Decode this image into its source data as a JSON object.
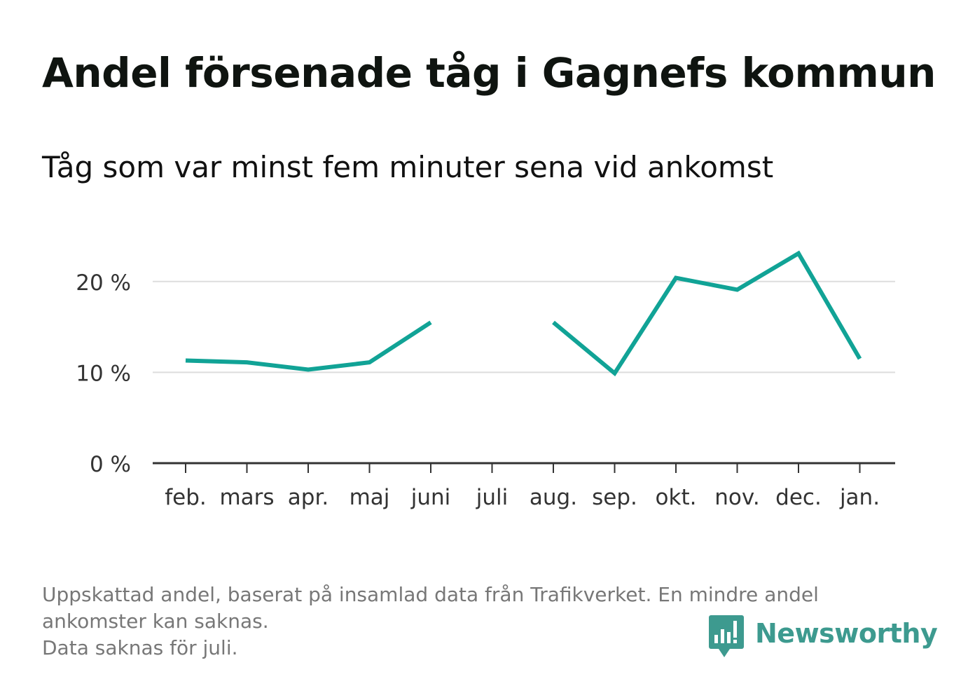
{
  "title": "Andel försenade tåg i Gagnefs kommun",
  "subtitle": "Tåg som var minst fem minuter sena vid ankomst",
  "footnote": {
    "line1": "Uppskattad andel, baserat på insamlad data från Trafikverket. En mindre andel",
    "line2": "ankomster kan saknas.",
    "line3": "Data saknas för juli."
  },
  "brand": {
    "name": "Newsworthy",
    "icon": "newsworthy-logo-icon"
  },
  "colors": {
    "line": "#11a396",
    "grid": "#dddddd",
    "axis": "#333333",
    "tick_text": "#333333",
    "brand": "#3d9a8f"
  },
  "chart_data": {
    "type": "line",
    "categories": [
      "feb.",
      "mars",
      "apr.",
      "maj",
      "juni",
      "juli",
      "aug.",
      "sep.",
      "okt.",
      "nov.",
      "dec.",
      "jan."
    ],
    "series": [
      {
        "values": [
          11.3,
          11.1,
          10.3,
          11.1,
          15.5,
          null,
          15.5,
          9.9,
          20.4,
          19.1,
          23.1,
          11.5
        ]
      }
    ],
    "ylim": [
      0,
      25
    ],
    "yticks": [
      0,
      10,
      20
    ],
    "ytick_labels": [
      "0 %",
      "10 %",
      "20 %"
    ],
    "grid": true,
    "xlabel": "",
    "ylabel": ""
  }
}
